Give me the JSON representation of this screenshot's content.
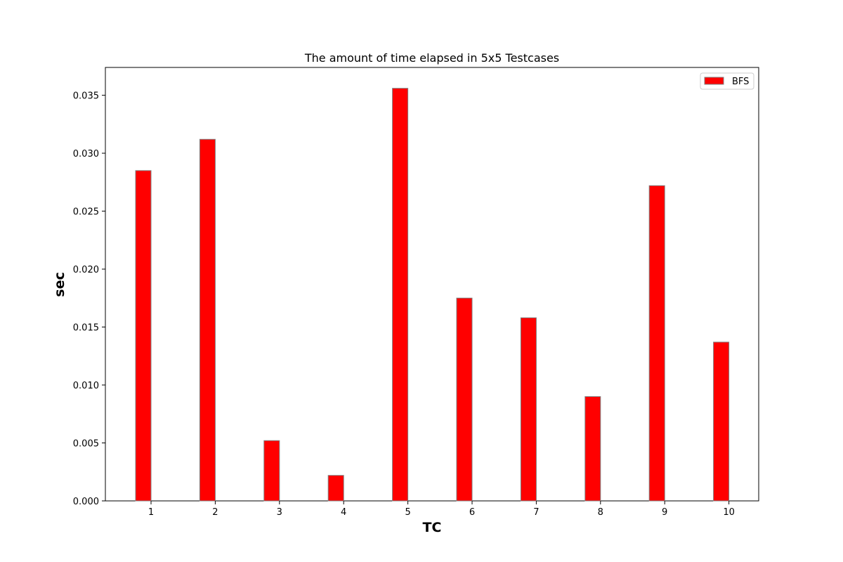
{
  "chart_data": {
    "type": "bar",
    "title": "The amount of time elapsed in 5x5 Testcases",
    "xlabel": "TC",
    "ylabel": "sec",
    "categories": [
      "1",
      "2",
      "3",
      "4",
      "5",
      "6",
      "7",
      "8",
      "9",
      "10"
    ],
    "series": [
      {
        "name": "BFS",
        "color": "#ff0000",
        "edge_color": "#808080",
        "values": [
          0.0285,
          0.0312,
          0.0052,
          0.0022,
          0.0356,
          0.0175,
          0.0158,
          0.009,
          0.0272,
          0.0137
        ]
      }
    ],
    "ylim": [
      0,
      0.0374
    ],
    "yticks": [
      "0.000",
      "0.005",
      "0.010",
      "0.015",
      "0.020",
      "0.025",
      "0.030",
      "0.035"
    ],
    "ytick_values": [
      0,
      0.005,
      0.01,
      0.015,
      0.02,
      0.025,
      0.03,
      0.035
    ],
    "grid": false,
    "legend_position": "top-right"
  }
}
